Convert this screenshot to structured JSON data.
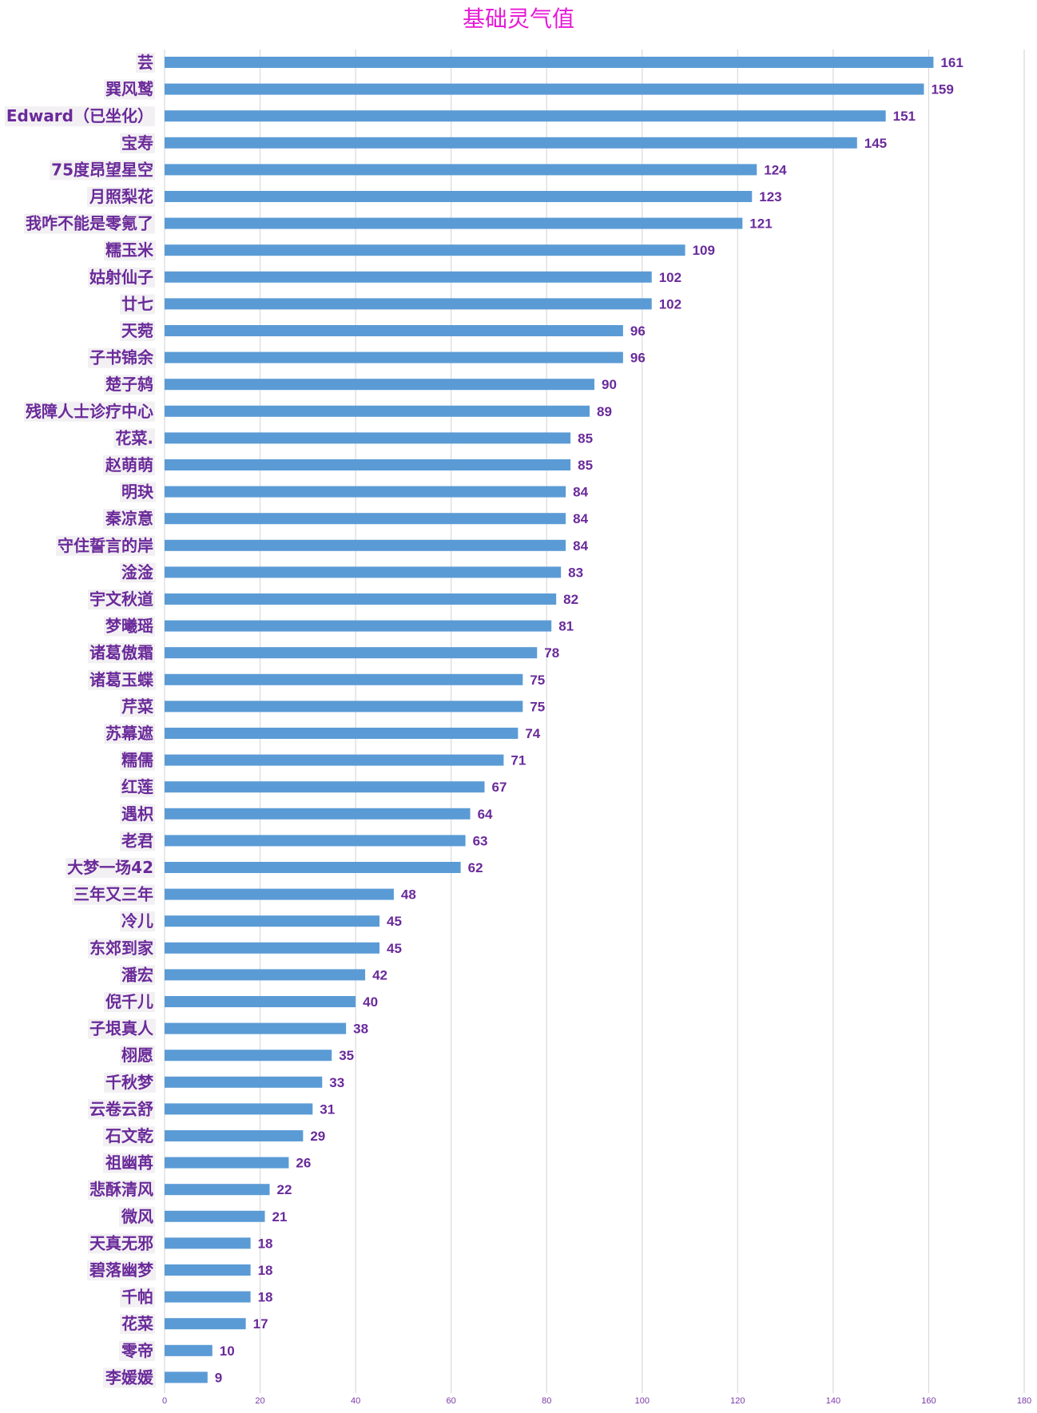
{
  "chart_data": {
    "type": "bar",
    "orientation": "horizontal",
    "title": "基础灵气值",
    "categories": [
      "芸",
      "巽风鹫",
      "Edward（已坐化）",
      "宝寿",
      "75度昂望星空",
      "月照梨花",
      "我咋不能是零氪了",
      "糯玉米",
      "姑射仙子",
      "廿七",
      "天菀",
      "子书锦余",
      "楚子鸫",
      "残障人士诊疗中心",
      "花菜.",
      "赵萌萌",
      "明玦",
      "秦凉意",
      "守住誓言的岸",
      "淦淦",
      "宇文秋道",
      "梦曦瑶",
      "诸葛傲霜",
      "诸葛玉蝶",
      "芹菜",
      "苏幕遮",
      "糯儒",
      "红莲",
      "遇枳",
      "老君",
      "大梦一场42",
      "三年又三年",
      "冷儿",
      "东郊到家",
      "潘宏",
      "倪千儿",
      "子垠真人",
      "栩愿",
      "千秋梦",
      "云卷云舒",
      "石文乾",
      "祖幽苒",
      "悲酥清风",
      "微风",
      "天真无邪",
      "碧落幽梦",
      "千帕",
      "花菜",
      "零帝",
      "李媛媛"
    ],
    "values": [
      161,
      159,
      151,
      145,
      124,
      123,
      121,
      109,
      102,
      102,
      96,
      96,
      90,
      89,
      85,
      85,
      84,
      84,
      84,
      83,
      82,
      81,
      78,
      75,
      75,
      74,
      71,
      67,
      64,
      63,
      62,
      48,
      45,
      45,
      42,
      40,
      38,
      35,
      33,
      31,
      29,
      26,
      22,
      21,
      18,
      18,
      18,
      17,
      10,
      9
    ],
    "xlim": [
      0,
      180
    ],
    "xticks": [
      0,
      20,
      40,
      60,
      80,
      100,
      120,
      140,
      160,
      180
    ],
    "grid": true,
    "legend": "none",
    "colors": {
      "bar": "#5b9bd5",
      "labels": "#6a2a9a",
      "title": "#e619d6",
      "grid": "#d9d9d9"
    }
  }
}
